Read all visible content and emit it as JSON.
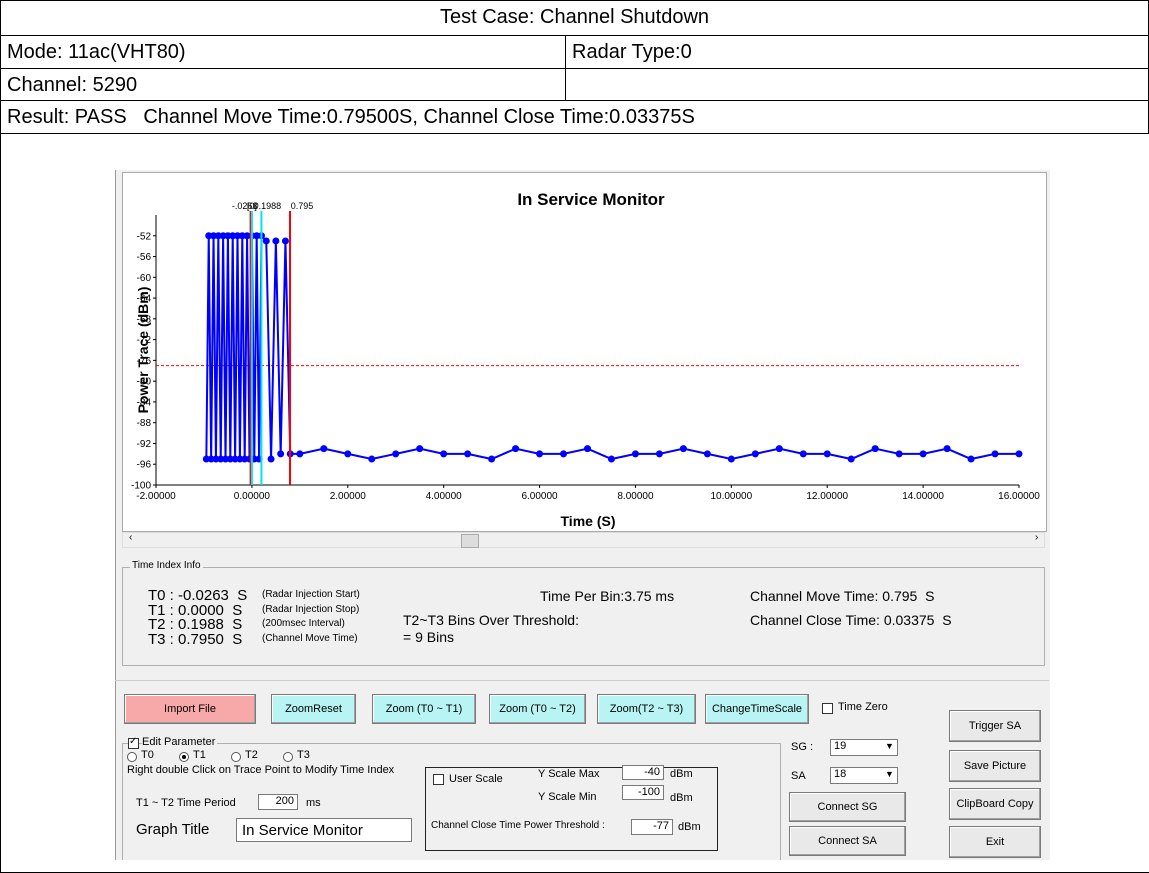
{
  "header": {
    "title": "Test Case: Channel Shutdown",
    "mode": "Mode: 11ac(VHT80)",
    "radar_type": "Radar Type:0",
    "channel": "Channel: 5290",
    "result": "Result: PASS   Channel Move Time:0.79500S, Channel Close Time:0.03375S"
  },
  "chart_data": {
    "type": "scatter",
    "title": "In Service Monitor",
    "x_label": "Time (S)",
    "y_label": "Power Trace (dBm)",
    "xlim": [
      -2,
      16
    ],
    "ylim": [
      -100,
      -48
    ],
    "xticks": [
      {
        "value": -2,
        "label": "-2.00000"
      },
      {
        "value": 0,
        "label": "0.00000"
      },
      {
        "value": 2,
        "label": "2.00000"
      },
      {
        "value": 4,
        "label": "4.00000"
      },
      {
        "value": 6,
        "label": "6.00000"
      },
      {
        "value": 8,
        "label": "8.00000"
      },
      {
        "value": 10,
        "label": "10.00000"
      },
      {
        "value": 12,
        "label": "12.00000"
      },
      {
        "value": 14,
        "label": "14.00000"
      },
      {
        "value": 16,
        "label": "16.00000"
      }
    ],
    "yticks": [
      -100,
      -96,
      -92,
      -88,
      -84,
      -80,
      -76,
      -72,
      -68,
      -64,
      -60,
      -56,
      -52
    ],
    "series": [
      {
        "name": "Power Trace",
        "color": "#0000ff",
        "x": [
          -0.95,
          -0.9,
          -0.85,
          -0.8,
          -0.75,
          -0.7,
          -0.65,
          -0.6,
          -0.55,
          -0.5,
          -0.45,
          -0.4,
          -0.35,
          -0.3,
          -0.25,
          -0.2,
          -0.15,
          -0.1,
          -0.05,
          0,
          0.05,
          0.1,
          0.15,
          0.2,
          0.3,
          0.4,
          0.5,
          0.6,
          0.7,
          0.8,
          1,
          1.5,
          2,
          2.5,
          3,
          3.5,
          4,
          4.5,
          5,
          5.5,
          6,
          6.5,
          7,
          7.5,
          8,
          8.5,
          9,
          9.5,
          10,
          10.5,
          11,
          11.5,
          12,
          12.5,
          13,
          13.5,
          14,
          14.5,
          15,
          15.5,
          16
        ],
        "values": [
          -95,
          -52,
          -95,
          -52,
          -95,
          -52,
          -95,
          -52,
          -95,
          -52,
          -95,
          -52,
          -95,
          -52,
          -95,
          -52,
          -95,
          -52,
          -95,
          -52,
          -95,
          -52,
          -95,
          -52,
          -53,
          -95,
          -53,
          -94,
          -53,
          -94,
          -94,
          -93,
          -94,
          -95,
          -94,
          -93,
          -94,
          -94,
          -95,
          -93,
          -94,
          -94,
          -93,
          -95,
          -94,
          -94,
          -93,
          -94,
          -95,
          -94,
          -93,
          -94,
          -94,
          -95,
          -93,
          -94,
          -94,
          -93,
          -95,
          -94,
          -94
        ]
      }
    ],
    "markers": [
      {
        "value": -0.0263,
        "label": "-.0263",
        "color": "#ff0000"
      },
      {
        "value": 0,
        "label": "[0]",
        "color": "#00e5ee"
      },
      {
        "value": 0.1988,
        "label": "0.1988",
        "color": "#00e5ee"
      },
      {
        "value": 0.795,
        "label": "0.795",
        "color": "#ff0000"
      }
    ],
    "threshold": {
      "value": -77,
      "color": "#ff0000"
    }
  },
  "time_index": {
    "title": "Time Index Info",
    "rows": [
      {
        "text": "T0 : -0.0263  S",
        "note": "(Radar Injection Start)"
      },
      {
        "text": "T1 : 0.0000  S",
        "note": "(Radar Injection Stop)"
      },
      {
        "text": "T2 : 0.1988  S",
        "note": "(200msec Interval)"
      },
      {
        "text": "T3 : 0.7950  S",
        "note": "(Channel Move Time)"
      }
    ],
    "time_per_bin": "Time Per Bin:3.75 ms",
    "bins_over": "T2~T3 Bins Over Threshold:",
    "bins": "= 9 Bins",
    "move_time": "Channel Move Time: 0.795  S",
    "close_time": "Channel Close Time: 0.03375  S"
  },
  "buttons": {
    "import": "Import File",
    "zoom_reset": "ZoomReset",
    "zoom_t0_t1": "Zoom (T0 ~ T1)",
    "zoom_t0_t2": "Zoom (T0 ~ T2)",
    "zoom_t2_t3": "Zoom(T2 ~ T3)",
    "change_scale": "ChangeTimeScale",
    "time_zero": "Time Zero",
    "trigger_sa": "Trigger SA",
    "save_picture": "Save Picture",
    "clipboard": "ClipBoard Copy",
    "exit": "Exit",
    "connect_sg": "Connect SG",
    "connect_sa": "Connect SA"
  },
  "edit": {
    "title": "Edit Parameter",
    "radios": [
      "T0",
      "T1",
      "T2",
      "T3"
    ],
    "hint": "Right double Click on Trace Point to Modify Time Index",
    "period_label": "T1 ~ T2 Time Period",
    "period": "200",
    "period_unit": "ms",
    "graph_title_label": "Graph Title",
    "graph_title": "In Service Monitor",
    "user_scale": "User Scale",
    "ymax_label": "Y Scale Max",
    "ymax": "-40",
    "ymax_unit": "dBm",
    "ymin_label": "Y Scale Min",
    "ymin": "-100",
    "ymin_unit": "dBm",
    "threshold_label": "Channel Close Time Power Threshold :",
    "threshold": "-77",
    "threshold_unit": "dBm",
    "sg_label": "SG :",
    "sg": "19",
    "sa_label": "SA",
    "sa": "18"
  }
}
